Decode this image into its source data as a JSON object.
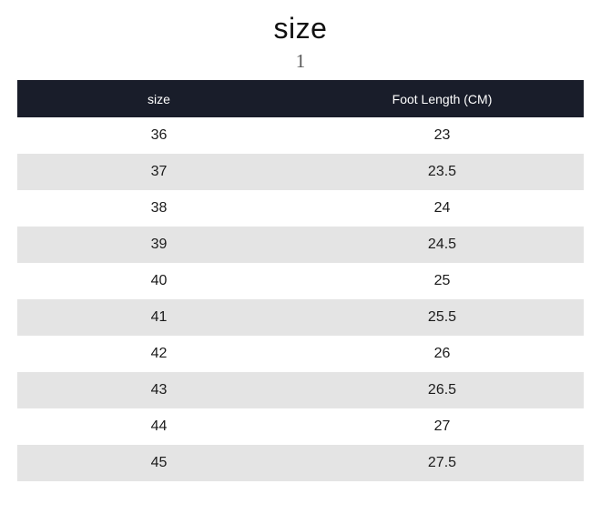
{
  "page": {
    "title": "size",
    "subtitle": "1"
  },
  "table": {
    "headers": [
      "size",
      "Foot Length (CM)"
    ],
    "rows": [
      [
        "36",
        "23"
      ],
      [
        "37",
        "23.5"
      ],
      [
        "38",
        "24"
      ],
      [
        "39",
        "24.5"
      ],
      [
        "40",
        "25"
      ],
      [
        "41",
        "25.5"
      ],
      [
        "42",
        "26"
      ],
      [
        "43",
        "26.5"
      ],
      [
        "44",
        "27"
      ],
      [
        "45",
        "27.5"
      ]
    ]
  },
  "colors": {
    "header_bg": "#191d2a",
    "header_text": "#ffffff",
    "row_bg": "#ffffff",
    "row_alt_bg": "#e4e4e4",
    "body_text": "#1b1b1b",
    "title_text": "#111111",
    "subtitle_text": "#575757"
  },
  "chart_data": {
    "type": "table",
    "title": "size",
    "subtitle": "1",
    "columns": [
      "size",
      "Foot Length (CM)"
    ],
    "rows": [
      [
        36,
        23
      ],
      [
        37,
        23.5
      ],
      [
        38,
        24
      ],
      [
        39,
        24.5
      ],
      [
        40,
        25
      ],
      [
        41,
        25.5
      ],
      [
        42,
        26
      ],
      [
        43,
        26.5
      ],
      [
        44,
        27
      ],
      [
        45,
        27.5
      ]
    ],
    "layout": {
      "header_style": "dark-navy bar, white text, centered",
      "zebra_striping": "odd rows white, even rows light gray",
      "alignment": "all cells centered"
    }
  }
}
